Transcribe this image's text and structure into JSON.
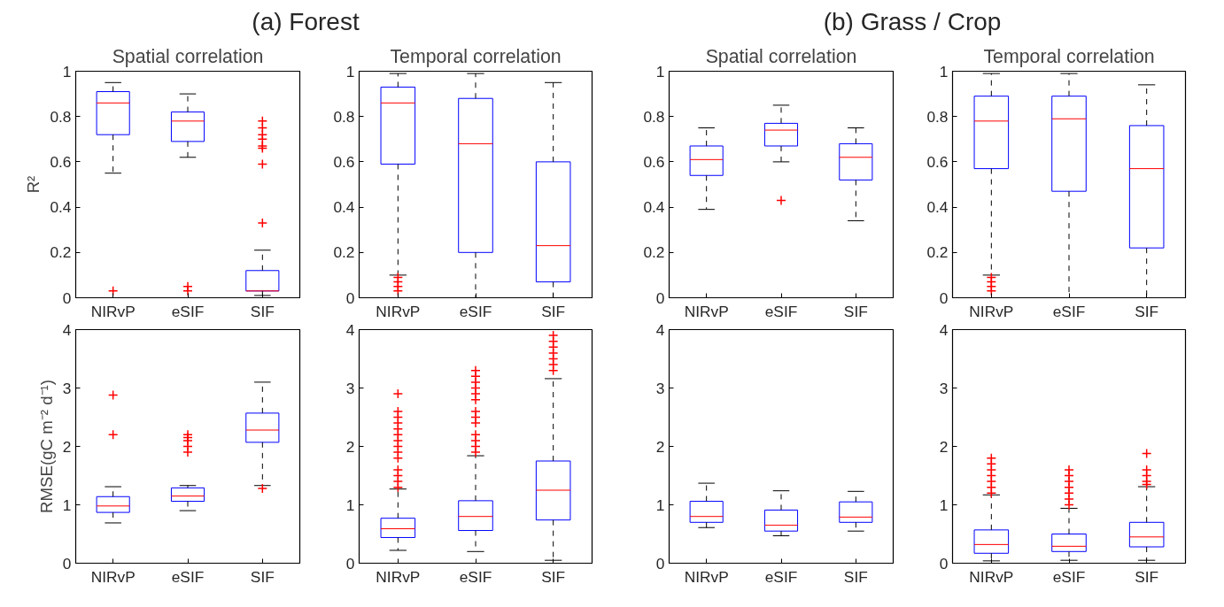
{
  "chart_data": [
    {
      "type": "box",
      "title": "(a) Forest",
      "subtitle": "Spatial correlation",
      "ylabel": "R²",
      "categories": [
        "NIRvP",
        "eSIF",
        "SIF"
      ],
      "ylim": [
        0,
        1
      ],
      "yticks": [
        0,
        0.2,
        0.4,
        0.6,
        0.8,
        1
      ],
      "marker": "cross",
      "series": [
        {
          "color": "#0000ff",
          "boxes": [
            {
              "low": 0.55,
              "q1": 0.72,
              "median": 0.86,
              "q3": 0.91,
              "high": 0.95,
              "outliers": [
                0.03
              ]
            },
            {
              "low": 0.62,
              "q1": 0.69,
              "median": 0.78,
              "q3": 0.82,
              "high": 0.9,
              "outliers": [
                0.03,
                0.05
              ]
            },
            {
              "low": 0.01,
              "q1": 0.03,
              "median": 0.03,
              "q3": 0.12,
              "high": 0.21,
              "outliers": [
                0.33,
                0.59,
                0.66,
                0.67,
                0.7,
                0.72,
                0.75,
                0.78
              ]
            }
          ]
        }
      ]
    },
    {
      "type": "box",
      "subtitle": "Temporal correlation",
      "categories": [
        "NIRvP",
        "eSIF",
        "SIF"
      ],
      "ylim": [
        0,
        1
      ],
      "yticks": [
        0,
        0.2,
        0.4,
        0.6,
        0.8,
        1
      ],
      "marker": "cross",
      "series": [
        {
          "color": "#0000ff",
          "boxes": [
            {
              "low": 0.1,
              "q1": 0.59,
              "median": 0.86,
              "q3": 0.93,
              "high": 0.99,
              "outliers": [
                0.03,
                0.05,
                0.07,
                0.09
              ]
            },
            {
              "low": 0.0,
              "q1": 0.2,
              "median": 0.68,
              "q3": 0.88,
              "high": 0.99
            },
            {
              "low": 0.0,
              "q1": 0.07,
              "median": 0.23,
              "q3": 0.6,
              "high": 0.95
            }
          ]
        }
      ]
    },
    {
      "type": "box",
      "title": "(b) Grass / Crop",
      "subtitle": "Spatial correlation",
      "categories": [
        "NIRvP",
        "eSIF",
        "SIF"
      ],
      "ylim": [
        0,
        1
      ],
      "yticks": [
        0,
        0.2,
        0.4,
        0.6,
        0.8,
        1
      ],
      "marker": "cross",
      "series": [
        {
          "color": "#0000ff",
          "boxes": [
            {
              "low": 0.39,
              "q1": 0.54,
              "median": 0.61,
              "q3": 0.67,
              "high": 0.75
            },
            {
              "low": 0.6,
              "q1": 0.67,
              "median": 0.74,
              "q3": 0.77,
              "high": 0.85,
              "outliers": [
                0.43
              ]
            },
            {
              "low": 0.34,
              "q1": 0.52,
              "median": 0.62,
              "q3": 0.68,
              "high": 0.75
            }
          ]
        }
      ]
    },
    {
      "type": "box",
      "subtitle": "Temporal correlation",
      "categories": [
        "NIRvP",
        "eSIF",
        "SIF"
      ],
      "ylim": [
        0,
        1
      ],
      "yticks": [
        0,
        0.2,
        0.4,
        0.6,
        0.8,
        1
      ],
      "marker": "cross",
      "series": [
        {
          "color": "#0000ff",
          "boxes": [
            {
              "low": 0.1,
              "q1": 0.57,
              "median": 0.78,
              "q3": 0.89,
              "high": 0.99,
              "outliers": [
                0.03,
                0.05,
                0.07,
                0.09
              ]
            },
            {
              "low": 0.0,
              "q1": 0.47,
              "median": 0.79,
              "q3": 0.89,
              "high": 0.99
            },
            {
              "low": 0.0,
              "q1": 0.22,
              "median": 0.57,
              "q3": 0.76,
              "high": 0.94
            }
          ]
        }
      ]
    },
    {
      "type": "box",
      "ylabel": "RMSE(gC m⁻² d⁻¹)",
      "categories": [
        "NIRvP",
        "eSIF",
        "SIF"
      ],
      "ylim": [
        0,
        4
      ],
      "yticks": [
        0,
        1,
        2,
        3,
        4
      ],
      "marker": "cross",
      "series": [
        {
          "color": "#0000ff",
          "boxes": [
            {
              "low": 0.69,
              "q1": 0.87,
              "median": 0.98,
              "q3": 1.14,
              "high": 1.31,
              "outliers": [
                2.2,
                2.88
              ]
            },
            {
              "low": 0.9,
              "q1": 1.06,
              "median": 1.15,
              "q3": 1.29,
              "high": 1.33,
              "outliers": [
                1.9,
                2.0,
                2.1,
                2.15,
                2.2
              ]
            },
            {
              "low": 1.33,
              "q1": 2.07,
              "median": 2.28,
              "q3": 2.57,
              "high": 3.1,
              "outliers": [
                1.28
              ]
            }
          ]
        }
      ]
    },
    {
      "type": "box",
      "categories": [
        "NIRvP",
        "eSIF",
        "SIF"
      ],
      "ylim": [
        0,
        4
      ],
      "yticks": [
        0,
        1,
        2,
        3,
        4
      ],
      "marker": "cross",
      "series": [
        {
          "color": "#0000ff",
          "boxes": [
            {
              "low": 0.22,
              "q1": 0.44,
              "median": 0.59,
              "q3": 0.77,
              "high": 1.27,
              "outliers": [
                1.3,
                1.4,
                1.5,
                1.6,
                1.8,
                1.9,
                2.0,
                2.1,
                2.2,
                2.3,
                2.4,
                2.5,
                2.6,
                2.9
              ]
            },
            {
              "low": 0.2,
              "q1": 0.56,
              "median": 0.8,
              "q3": 1.07,
              "high": 1.84,
              "outliers": [
                1.9,
                2.0,
                2.1,
                2.2,
                2.4,
                2.5,
                2.6,
                2.8,
                2.9,
                3.0,
                3.1,
                3.2,
                3.3
              ]
            },
            {
              "low": 0.05,
              "q1": 0.74,
              "median": 1.25,
              "q3": 1.75,
              "high": 3.16,
              "outliers": [
                3.3,
                3.4,
                3.5,
                3.6,
                3.7,
                3.8,
                3.9
              ]
            }
          ]
        }
      ]
    },
    {
      "type": "box",
      "categories": [
        "NIRvP",
        "eSIF",
        "SIF"
      ],
      "ylim": [
        0,
        4
      ],
      "yticks": [
        0,
        1,
        2,
        3,
        4
      ],
      "marker": "cross",
      "series": [
        {
          "color": "#0000ff",
          "boxes": [
            {
              "low": 0.61,
              "q1": 0.7,
              "median": 0.8,
              "q3": 1.06,
              "high": 1.37
            },
            {
              "low": 0.47,
              "q1": 0.55,
              "median": 0.65,
              "q3": 0.91,
              "high": 1.24
            },
            {
              "low": 0.55,
              "q1": 0.7,
              "median": 0.79,
              "q3": 1.05,
              "high": 1.23
            }
          ]
        }
      ]
    },
    {
      "type": "box",
      "categories": [
        "NIRvP",
        "eSIF",
        "SIF"
      ],
      "ylim": [
        0,
        4
      ],
      "yticks": [
        0,
        1,
        2,
        3,
        4
      ],
      "marker": "cross",
      "series": [
        {
          "color": "#0000ff",
          "boxes": [
            {
              "low": 0.04,
              "q1": 0.17,
              "median": 0.32,
              "q3": 0.57,
              "high": 1.17,
              "outliers": [
                1.2,
                1.3,
                1.4,
                1.5,
                1.6,
                1.7,
                1.8
              ]
            },
            {
              "low": 0.05,
              "q1": 0.2,
              "median": 0.29,
              "q3": 0.5,
              "high": 0.94,
              "outliers": [
                1.0,
                1.1,
                1.2,
                1.3,
                1.4,
                1.5,
                1.6
              ]
            },
            {
              "low": 0.05,
              "q1": 0.28,
              "median": 0.45,
              "q3": 0.7,
              "high": 1.31,
              "outliers": [
                1.35,
                1.4,
                1.5,
                1.6,
                1.88
              ]
            }
          ]
        }
      ]
    }
  ]
}
